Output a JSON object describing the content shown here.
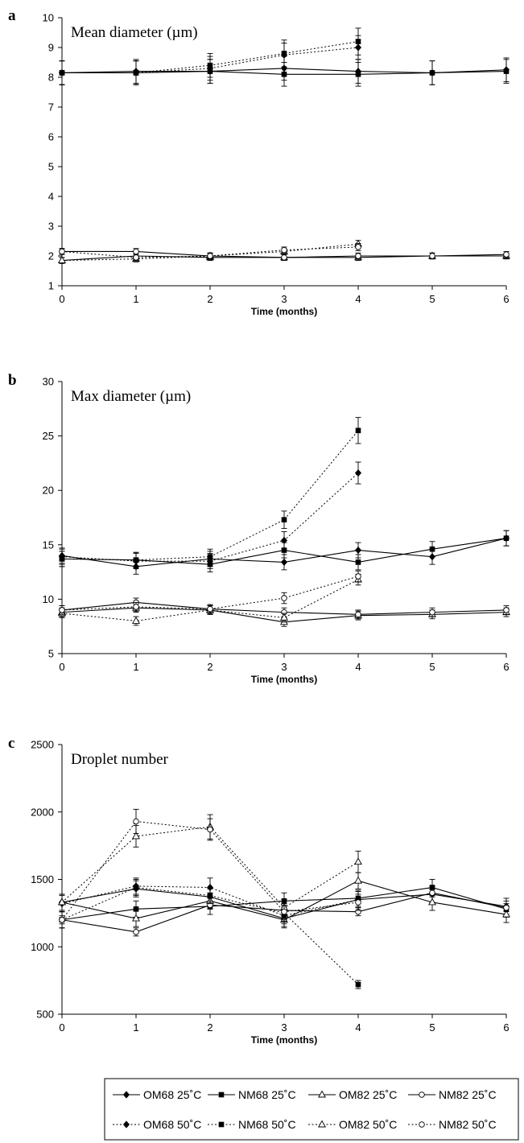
{
  "figure": {
    "legend": [
      {
        "name": "OM68 25˚C",
        "line": "solid",
        "marker": "diamond-filled"
      },
      {
        "name": "NM68 25˚C",
        "line": "solid",
        "marker": "square-filled"
      },
      {
        "name": "OM82 25˚C",
        "line": "solid",
        "marker": "triangle-open"
      },
      {
        "name": "NM82 25˚C",
        "line": "solid",
        "marker": "circle-open"
      },
      {
        "name": "OM68 50˚C",
        "line": "dotted",
        "marker": "diamond-filled"
      },
      {
        "name": "NM68 50˚C",
        "line": "dotted",
        "marker": "square-filled"
      },
      {
        "name": "OM82 50˚C",
        "line": "dotted",
        "marker": "triangle-open"
      },
      {
        "name": "NM82 50˚C",
        "line": "dotted",
        "marker": "circle-open"
      }
    ],
    "legend_position": "bottom"
  },
  "chart_data": [
    {
      "panel": "a",
      "type": "line",
      "title": "Mean diameter (µm)",
      "xlabel": "Time (months)",
      "ylabel": "",
      "xlim": [
        0,
        6
      ],
      "ylim": [
        1,
        10
      ],
      "xticks": [
        0,
        1,
        2,
        3,
        4,
        5,
        6
      ],
      "yticks": [
        1,
        2,
        3,
        4,
        5,
        6,
        7,
        8,
        9,
        10
      ],
      "grid": false,
      "series": [
        {
          "name": "OM68 25˚C",
          "x": [
            0,
            1,
            2,
            3,
            4,
            5,
            6
          ],
          "y": [
            8.15,
            8.2,
            8.2,
            8.3,
            8.2,
            8.15,
            8.25
          ],
          "err": [
            0.4,
            0.4,
            0.4,
            0.4,
            0.4,
            0.4,
            0.4
          ]
        },
        {
          "name": "NM68 25˚C",
          "x": [
            0,
            1,
            2,
            3,
            4,
            5,
            6
          ],
          "y": [
            8.15,
            8.15,
            8.2,
            8.1,
            8.1,
            8.15,
            8.2
          ],
          "err": [
            0.4,
            0.4,
            0.4,
            0.4,
            0.4,
            0.4,
            0.4
          ]
        },
        {
          "name": "OM82 25˚C",
          "x": [
            0,
            1,
            2,
            3,
            4,
            5,
            6
          ],
          "y": [
            1.85,
            2.0,
            1.95,
            1.95,
            1.95,
            2.0,
            2.0
          ],
          "err": [
            0.1,
            0.1,
            0.1,
            0.1,
            0.1,
            0.1,
            0.1
          ]
        },
        {
          "name": "NM82 25˚C",
          "x": [
            0,
            1,
            2,
            3,
            4,
            5,
            6
          ],
          "y": [
            2.15,
            2.15,
            2.0,
            1.95,
            2.0,
            2.0,
            2.05
          ],
          "err": [
            0.1,
            0.1,
            0.1,
            0.1,
            0.1,
            0.1,
            0.1
          ]
        },
        {
          "name": "OM68 50˚C",
          "x": [
            0,
            1,
            2,
            3,
            4
          ],
          "y": [
            8.15,
            8.15,
            8.3,
            8.75,
            9.0
          ],
          "err": [
            0.4,
            0.4,
            0.4,
            0.4,
            0.4
          ]
        },
        {
          "name": "NM68 50˚C",
          "x": [
            0,
            1,
            2,
            3,
            4
          ],
          "y": [
            8.15,
            8.15,
            8.4,
            8.8,
            9.2
          ],
          "err": [
            0.4,
            0.4,
            0.4,
            0.45,
            0.45
          ]
        },
        {
          "name": "OM82 50˚C",
          "x": [
            0,
            1,
            2,
            3,
            4
          ],
          "y": [
            1.85,
            1.9,
            2.0,
            2.15,
            2.4
          ],
          "err": [
            0.1,
            0.1,
            0.1,
            0.1,
            0.12
          ]
        },
        {
          "name": "NM82 50˚C",
          "x": [
            0,
            1,
            2,
            3,
            4
          ],
          "y": [
            2.15,
            1.95,
            2.0,
            2.2,
            2.3
          ],
          "err": [
            0.1,
            0.1,
            0.1,
            0.1,
            0.12
          ]
        }
      ]
    },
    {
      "panel": "b",
      "type": "line",
      "title": "Max diameter (µm)",
      "xlabel": "Time (months)",
      "ylabel": "",
      "xlim": [
        0,
        6
      ],
      "ylim": [
        5,
        30
      ],
      "xticks": [
        0,
        1,
        2,
        3,
        4,
        5,
        6
      ],
      "yticks": [
        5,
        10,
        15,
        20,
        25,
        30
      ],
      "grid": false,
      "series": [
        {
          "name": "OM68 25˚C",
          "x": [
            0,
            1,
            2,
            3,
            4,
            5,
            6
          ],
          "y": [
            14.0,
            13.0,
            13.7,
            13.4,
            14.5,
            13.9,
            15.6
          ],
          "err": [
            0.7,
            0.7,
            0.7,
            0.7,
            0.7,
            0.7,
            0.7
          ]
        },
        {
          "name": "NM68 25˚C",
          "x": [
            0,
            1,
            2,
            3,
            4,
            5,
            6
          ],
          "y": [
            13.7,
            13.6,
            13.2,
            14.5,
            13.4,
            14.6,
            15.6
          ],
          "err": [
            0.7,
            0.7,
            0.7,
            0.7,
            0.7,
            0.7,
            0.7
          ]
        },
        {
          "name": "OM82 25˚C",
          "x": [
            0,
            1,
            2,
            3,
            4,
            5,
            6
          ],
          "y": [
            8.8,
            9.2,
            9.0,
            7.9,
            8.5,
            8.6,
            8.8
          ],
          "err": [
            0.4,
            0.4,
            0.4,
            0.4,
            0.4,
            0.4,
            0.4
          ]
        },
        {
          "name": "NM82 25˚C",
          "x": [
            0,
            1,
            2,
            3,
            4,
            5,
            6
          ],
          "y": [
            9.0,
            9.7,
            9.1,
            8.8,
            8.6,
            8.8,
            9.0
          ],
          "err": [
            0.4,
            0.4,
            0.4,
            0.4,
            0.4,
            0.4,
            0.4
          ]
        },
        {
          "name": "OM68 50˚C",
          "x": [
            0,
            1,
            2,
            3,
            4
          ],
          "y": [
            13.9,
            13.5,
            13.5,
            15.4,
            21.6
          ],
          "err": [
            0.7,
            0.7,
            0.7,
            0.8,
            1.0
          ]
        },
        {
          "name": "NM68 50˚C",
          "x": [
            0,
            1,
            2,
            3,
            4
          ],
          "y": [
            13.7,
            13.6,
            13.9,
            17.3,
            25.5
          ],
          "err": [
            0.7,
            0.7,
            0.7,
            0.8,
            1.2
          ]
        },
        {
          "name": "OM82 50˚C",
          "x": [
            0,
            1,
            2,
            3,
            4
          ],
          "y": [
            8.7,
            8.0,
            9.0,
            8.3,
            11.8
          ],
          "err": [
            0.4,
            0.4,
            0.4,
            0.4,
            0.5
          ]
        },
        {
          "name": "NM82 50˚C",
          "x": [
            0,
            1,
            2,
            3,
            4
          ],
          "y": [
            9.0,
            9.3,
            9.1,
            10.1,
            12.1
          ],
          "err": [
            0.4,
            0.4,
            0.4,
            0.5,
            0.5
          ]
        }
      ]
    },
    {
      "panel": "c",
      "type": "line",
      "title": "Droplet number",
      "xlabel": "Time (months)",
      "ylabel": "",
      "xlim": [
        0,
        6
      ],
      "ylim": [
        500,
        2500
      ],
      "xticks": [
        0,
        1,
        2,
        3,
        4,
        5,
        6
      ],
      "yticks": [
        500,
        1000,
        1500,
        2000,
        2500
      ],
      "grid": false,
      "series": [
        {
          "name": "OM68 25˚C",
          "x": [
            0,
            1,
            2,
            3,
            4,
            5,
            6
          ],
          "y": [
            1330,
            1430,
            1370,
            1210,
            1350,
            1390,
            1300
          ],
          "err": [
            60,
            60,
            60,
            60,
            60,
            60,
            60
          ]
        },
        {
          "name": "NM68 25˚C",
          "x": [
            0,
            1,
            2,
            3,
            4,
            5,
            6
          ],
          "y": [
            1200,
            1280,
            1300,
            1340,
            1360,
            1440,
            1280
          ],
          "err": [
            60,
            60,
            60,
            60,
            60,
            60,
            60
          ]
        },
        {
          "name": "OM82 25˚C",
          "x": [
            0,
            1,
            2,
            3,
            4,
            5,
            6
          ],
          "y": [
            1330,
            1210,
            1340,
            1200,
            1490,
            1330,
            1240
          ],
          "err": [
            60,
            60,
            60,
            60,
            60,
            60,
            60
          ]
        },
        {
          "name": "NM82 25˚C",
          "x": [
            0,
            1,
            2,
            3,
            4,
            5,
            6
          ],
          "y": [
            1200,
            1110,
            1310,
            1270,
            1260,
            1400,
            1290
          ],
          "err": [
            30,
            30,
            30,
            30,
            30,
            30,
            30
          ]
        },
        {
          "name": "OM68 50˚C",
          "x": [
            0,
            1,
            2,
            3,
            4
          ],
          "y": [
            1320,
            1450,
            1440,
            1230,
            1350
          ],
          "err": [
            60,
            60,
            70,
            60,
            60
          ]
        },
        {
          "name": "NM68 50˚C",
          "x": [
            0,
            1,
            2,
            3,
            4
          ],
          "y": [
            1200,
            1440,
            1380,
            1250,
            720
          ],
          "err": [
            60,
            60,
            60,
            60,
            30
          ]
        },
        {
          "name": "OM82 50˚C",
          "x": [
            0,
            1,
            2,
            3,
            4
          ],
          "y": [
            1330,
            1820,
            1890,
            1290,
            1630
          ],
          "err": [
            60,
            80,
            90,
            60,
            80
          ]
        },
        {
          "name": "NM82 50˚C",
          "x": [
            0,
            1,
            2,
            3,
            4
          ],
          "y": [
            1200,
            1930,
            1870,
            1260,
            1330
          ],
          "err": [
            60,
            90,
            80,
            60,
            60
          ]
        }
      ]
    }
  ]
}
